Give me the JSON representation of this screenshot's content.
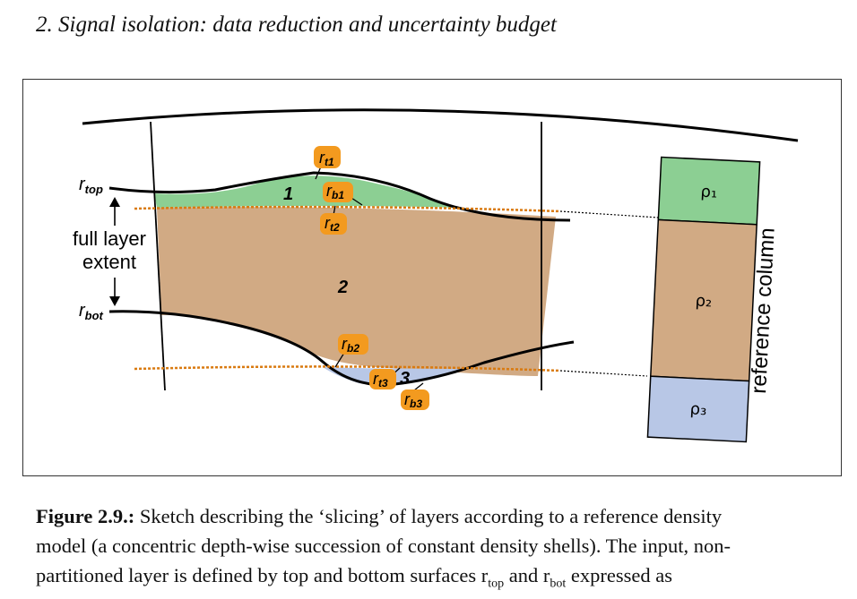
{
  "header": {
    "title": "2.  Signal isolation: data reduction and uncertainty budget"
  },
  "figure": {
    "left_labels": {
      "r_top_main": "r",
      "r_top_sub": "top",
      "extent_line1": "full layer",
      "extent_line2": "extent",
      "r_bot_main": "r",
      "r_bot_sub": "bot"
    },
    "layer_numbers": {
      "l1": "1",
      "l2": "2",
      "l3": "3"
    },
    "tags": [
      {
        "main": "r",
        "sub": "t1"
      },
      {
        "main": "r",
        "sub": "b1"
      },
      {
        "main": "r",
        "sub": "t2"
      },
      {
        "main": "r",
        "sub": "b2"
      },
      {
        "main": "r",
        "sub": "t3"
      },
      {
        "main": "r",
        "sub": "b3"
      }
    ],
    "column": {
      "label": "reference column",
      "rho1": "ρ₁",
      "rho2": "ρ₂",
      "rho3": "ρ₃"
    },
    "colors": {
      "layer1": "#8ccf93",
      "layer2": "#d1aa84",
      "layer3": "#b8c7e6",
      "tag": "#f39a1f",
      "dotted": "#d97a10"
    }
  },
  "caption": {
    "label": "Figure 2.9.:",
    "line1": " Sketch describing the ‘slicing’ of layers according to a reference density",
    "line2": "model (a concentric depth-wise succession of constant density shells). The input, non-",
    "line3": "partitioned  layer is defined by top and bottom surfaces r",
    "line3_sub1": "top",
    "line3_mid": "  and r",
    "line3_sub2": "bot",
    "line3_end": "  expressed as"
  }
}
